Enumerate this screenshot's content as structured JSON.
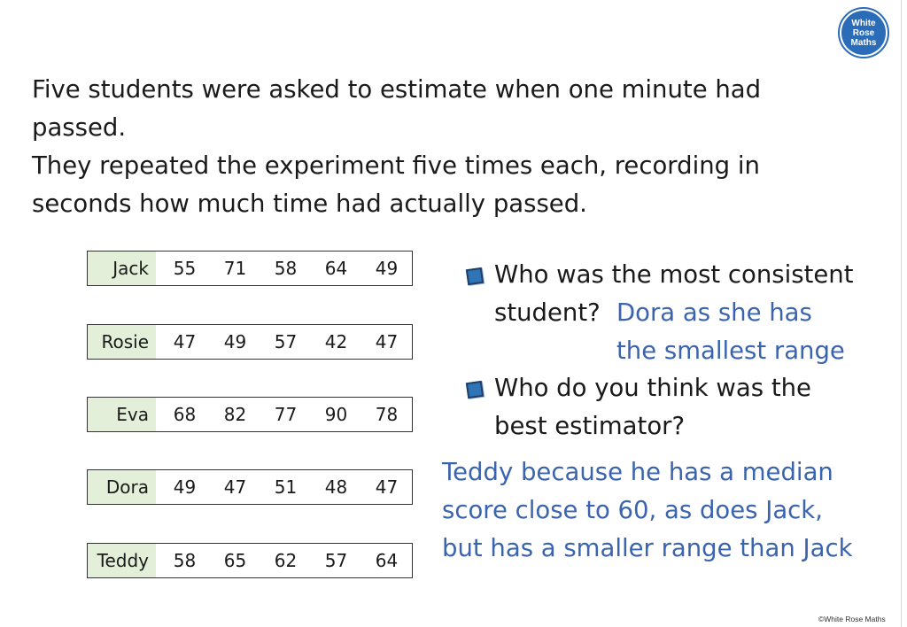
{
  "logo": {
    "line1": "White",
    "line2": "Rose",
    "line3": "Maths"
  },
  "intro": {
    "line1": "Five students were asked to estimate when one minute had",
    "line2": "passed.",
    "line3": "They repeated the experiment five times each, recording in",
    "line4": "seconds how much time had actually passed."
  },
  "table": {
    "rows": [
      {
        "name": "Jack",
        "values": [
          "55",
          "71",
          "58",
          "64",
          "49"
        ]
      },
      {
        "name": "Rosie",
        "values": [
          "47",
          "49",
          "57",
          "42",
          "47"
        ]
      },
      {
        "name": "Eva",
        "values": [
          "68",
          "82",
          "77",
          "90",
          "78"
        ]
      },
      {
        "name": "Dora",
        "values": [
          "49",
          "47",
          "51",
          "48",
          "47"
        ]
      },
      {
        "name": "Teddy",
        "values": [
          "58",
          "65",
          "62",
          "57",
          "64"
        ]
      }
    ]
  },
  "questions": {
    "q1_line1": "Who was the most consistent",
    "q1_line2": "student?",
    "q2_line1": "Who do you think was the",
    "q2_line2": "best estimator?"
  },
  "answers": {
    "a1_line1": "Dora as she has",
    "a1_line2": "the smallest range",
    "a2_line1": "Teddy because he has a median",
    "a2_line2": "score close to 60, as does Jack,",
    "a2_line3": "but has a smaller range than Jack"
  },
  "copyright": "©White Rose Maths",
  "colors": {
    "answer": "#3b64ae",
    "name_cell": "#e3efd9",
    "logo": "#2b6cb8"
  }
}
